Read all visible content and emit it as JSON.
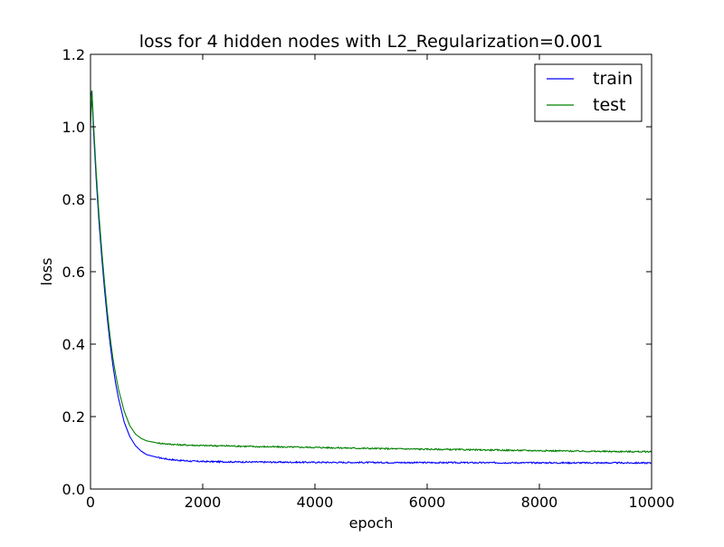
{
  "chart_data": {
    "type": "line",
    "title": "loss for 4 hidden nodes with L2_Regularization=0.001",
    "xlabel": "epoch",
    "ylabel": "loss",
    "xlim": [
      0,
      10000
    ],
    "ylim": [
      0.0,
      1.2
    ],
    "xticks": [
      0,
      2000,
      4000,
      6000,
      8000,
      10000
    ],
    "yticks": [
      0.0,
      0.2,
      0.4,
      0.6,
      0.8,
      1.0,
      1.2
    ],
    "xtick_labels": [
      "0",
      "2000",
      "4000",
      "6000",
      "8000",
      "10000"
    ],
    "ytick_labels": [
      "0.0",
      "0.2",
      "0.4",
      "0.6",
      "0.8",
      "1.0",
      "1.2"
    ],
    "grid": false,
    "legend_position": "top-right",
    "x": [
      0,
      25,
      50,
      100,
      150,
      200,
      250,
      300,
      350,
      400,
      450,
      500,
      600,
      700,
      800,
      900,
      1000,
      1200,
      1400,
      1600,
      1800,
      2000,
      2500,
      3000,
      3500,
      4000,
      4500,
      5000,
      5500,
      6000,
      6500,
      7000,
      7500,
      8000,
      8500,
      9000,
      9500,
      10000
    ],
    "series": [
      {
        "name": "train",
        "color": "#0000ff",
        "values": [
          1.08,
          1.1,
          1.0,
          0.86,
          0.74,
          0.64,
          0.55,
          0.47,
          0.4,
          0.34,
          0.29,
          0.25,
          0.185,
          0.145,
          0.12,
          0.105,
          0.095,
          0.087,
          0.082,
          0.079,
          0.077,
          0.076,
          0.075,
          0.0745,
          0.074,
          0.0738,
          0.0735,
          0.0733,
          0.0731,
          0.073,
          0.0728,
          0.0727,
          0.0726,
          0.0725,
          0.0724,
          0.0723,
          0.0722,
          0.072
        ]
      },
      {
        "name": "test",
        "color": "#008000",
        "values": [
          1.0,
          1.1,
          1.02,
          0.88,
          0.76,
          0.66,
          0.57,
          0.49,
          0.42,
          0.36,
          0.315,
          0.275,
          0.215,
          0.175,
          0.152,
          0.14,
          0.133,
          0.127,
          0.124,
          0.122,
          0.121,
          0.12,
          0.119,
          0.117,
          0.116,
          0.115,
          0.1135,
          0.112,
          0.111,
          0.11,
          0.109,
          0.108,
          0.107,
          0.106,
          0.105,
          0.104,
          0.1035,
          0.103
        ]
      }
    ]
  }
}
